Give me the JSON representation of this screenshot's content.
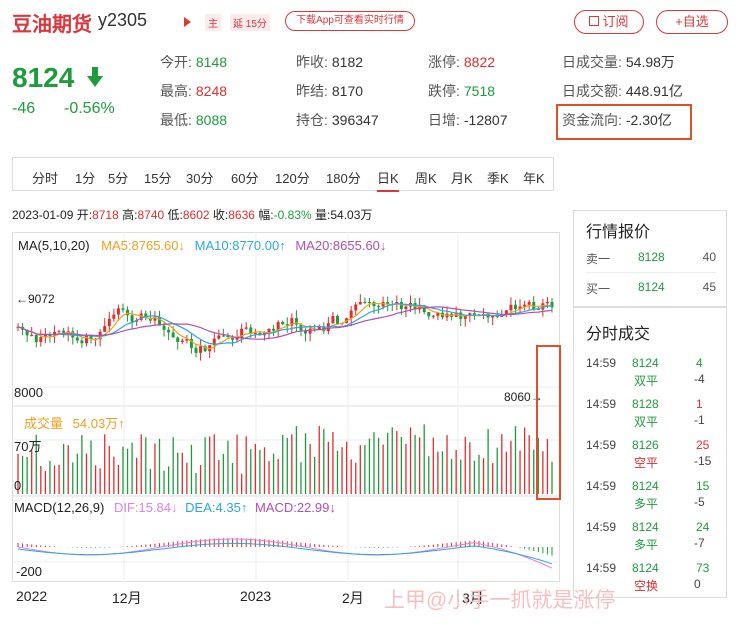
{
  "header": {
    "name": "豆油期货",
    "code": "y2305",
    "badge_main": "主",
    "badge_delay": "延 15分",
    "app_banner": "下载App可查看实时行情",
    "subscribe": "订阅",
    "add_watch": "+自选"
  },
  "price": {
    "last": "8124",
    "change": "-46",
    "change_pct": "-0.56%"
  },
  "quote": [
    [
      {
        "k": "今开:",
        "v": "8148",
        "c": "green"
      },
      {
        "k": "昨收:",
        "v": "8182",
        "c": "normal"
      },
      {
        "k": "涨停:",
        "v": "8822",
        "c": "red"
      },
      {
        "k": "日成交量:",
        "v": "54.98万",
        "c": "normal"
      }
    ],
    [
      {
        "k": "最高:",
        "v": "8248",
        "c": "red"
      },
      {
        "k": "昨结:",
        "v": "8170",
        "c": "normal"
      },
      {
        "k": "跌停:",
        "v": "7518",
        "c": "green"
      },
      {
        "k": "日成交额:",
        "v": "448.91亿",
        "c": "normal"
      }
    ],
    [
      {
        "k": "最低:",
        "v": "8088",
        "c": "green"
      },
      {
        "k": "持仓:",
        "v": "396347",
        "c": "normal"
      },
      {
        "k": "日增:",
        "v": "-12807",
        "c": "normal"
      },
      {
        "k": "资金流向:",
        "v": "-2.30亿",
        "c": "normal"
      }
    ]
  ],
  "tabs": [
    "分时",
    "1分",
    "5分",
    "15分",
    "30分",
    "60分",
    "120分",
    "180分",
    "日K",
    "周K",
    "月K",
    "季K",
    "年K"
  ],
  "active_tab": "日K",
  "ohlc_bar": {
    "date": "2023-01-09",
    "open_label": "开:",
    "open": "8718",
    "high_label": "高:",
    "high": "8740",
    "low_label": "低:",
    "low": "8602",
    "close_label": "收:",
    "close": "8636",
    "amp_label": "幅:",
    "amp": "-0.83%",
    "vol_label": "量:",
    "vol": "54.03万"
  },
  "ma_legend": {
    "title": "MA(5,10,20)",
    "ma5": "MA5:8765.60",
    "ma10": "MA10:8770.00",
    "ma20": "MA20:8655.60",
    "c5": "#f0a020",
    "c10": "#2aa8e0",
    "c20": "#b050b0"
  },
  "axis": {
    "high_mark": "←9072",
    "low_mark": "8060→",
    "price_tick": "8000",
    "vol_tick_top": "70万",
    "vol_tick_zero": "0",
    "macd_tick": "-200",
    "x_labels": [
      "2022",
      "12月",
      "2023",
      "2月",
      "3月"
    ]
  },
  "vol_legend": {
    "label": "成交量",
    "value": "54.03万",
    "arrow": "↑"
  },
  "macd_legend": {
    "title": "MACD(12,26,9)",
    "dif": "DIF:15.84",
    "dea": "DEA:4.35",
    "macd": "MACD:22.99",
    "cdif": "#e080e0",
    "cdea": "#2aa8e0",
    "cmacd": "#b050b0"
  },
  "orderbook": {
    "title": "行情报价",
    "rows": [
      {
        "label": "卖一",
        "price": "8128",
        "qty": "40"
      },
      {
        "label": "买一",
        "price": "8124",
        "qty": "45"
      }
    ]
  },
  "trades": {
    "title": "分时成交",
    "rows": [
      {
        "time": "14:59",
        "price": "8124",
        "qty": "4",
        "qty_color": "green",
        "type": "双平",
        "diff": "-4"
      },
      {
        "time": "14:59",
        "price": "8128",
        "qty": "1",
        "qty_color": "red",
        "type": "双平",
        "diff": "-1"
      },
      {
        "time": "14:59",
        "price": "8126",
        "qty": "25",
        "qty_color": "red",
        "type": "空平",
        "diff": "-15"
      },
      {
        "time": "14:59",
        "price": "8124",
        "qty": "15",
        "qty_color": "green",
        "type": "多平",
        "diff": "-5"
      },
      {
        "time": "14:59",
        "price": "8124",
        "qty": "24",
        "qty_color": "green",
        "type": "多平",
        "diff": "-7"
      },
      {
        "time": "14:59",
        "price": "8124",
        "qty": "73",
        "qty_color": "green",
        "type": "空换",
        "diff": "0"
      }
    ]
  },
  "watermark": "上甲@小手一抓就是涨停",
  "colors": {
    "up": "#e02d2d",
    "down": "#1e9b3c",
    "accent": "#d9383c",
    "highlight": "#e0502a"
  }
}
